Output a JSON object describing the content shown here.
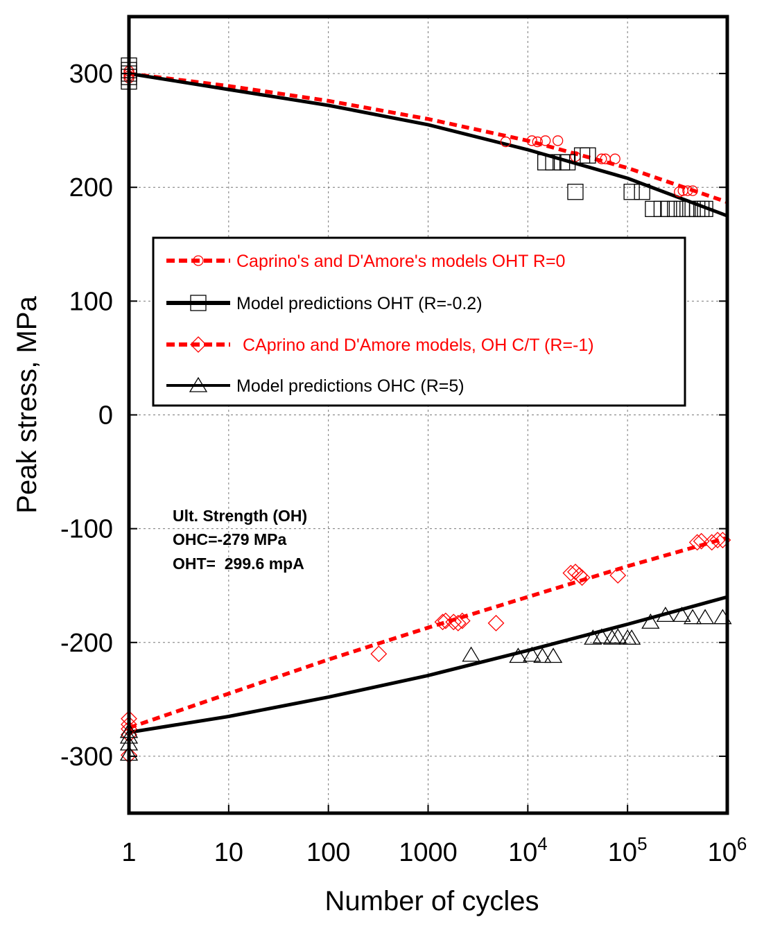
{
  "chart_data": {
    "type": "scatter",
    "title": "",
    "xlabel": "Number of cycles",
    "ylabel": "Peak stress, MPa",
    "xscale": "log",
    "xlim": [
      1,
      1000000
    ],
    "ylim": [
      -350,
      350
    ],
    "grid": true,
    "x_ticks": [
      {
        "value": 1,
        "label": "1"
      },
      {
        "value": 10,
        "label": "10"
      },
      {
        "value": 100,
        "label": "100"
      },
      {
        "value": 1000,
        "label": "1000"
      },
      {
        "value": 10000,
        "base": "10",
        "exp": "4"
      },
      {
        "value": 100000,
        "base": "10",
        "exp": "5"
      },
      {
        "value": 1000000,
        "base": "10",
        "exp": "6"
      }
    ],
    "y_ticks": [
      {
        "value": 300,
        "label": "300"
      },
      {
        "value": 200,
        "label": "200"
      },
      {
        "value": 100,
        "label": "100"
      },
      {
        "value": 0,
        "label": "0"
      },
      {
        "value": -100,
        "label": "-100"
      },
      {
        "value": -200,
        "label": "-200"
      },
      {
        "value": -300,
        "label": "-300"
      }
    ],
    "legend_position": "upper-middle",
    "series": [
      {
        "name": "Caprino's and D'Amore's models OHT R=0",
        "color": "#ff0000",
        "line": "dashed",
        "marker": "circle",
        "curve": [
          [
            1,
            300
          ],
          [
            10,
            289
          ],
          [
            100,
            276
          ],
          [
            1000,
            260
          ],
          [
            10000,
            241
          ],
          [
            100000,
            217
          ],
          [
            1000000,
            187
          ]
        ],
        "points": [
          [
            1,
            300
          ],
          [
            1,
            298
          ],
          [
            1,
            302
          ],
          [
            1,
            296
          ],
          [
            6000,
            240
          ],
          [
            11000,
            241
          ],
          [
            12500,
            240
          ],
          [
            15000,
            241
          ],
          [
            20000,
            241
          ],
          [
            30000,
            227
          ],
          [
            55000,
            225
          ],
          [
            60000,
            225
          ],
          [
            75000,
            225
          ],
          [
            330000,
            196
          ],
          [
            360000,
            197
          ],
          [
            400000,
            197
          ],
          [
            450000,
            197
          ]
        ]
      },
      {
        "name": "Model predictions OHT (R=-0.2)",
        "color": "#000000",
        "line": "solid",
        "marker": "square",
        "curve": [
          [
            1,
            300
          ],
          [
            10,
            286
          ],
          [
            100,
            272
          ],
          [
            1000,
            255
          ],
          [
            10000,
            233
          ],
          [
            100000,
            208
          ],
          [
            1000000,
            175
          ]
        ],
        "points": [
          [
            1,
            307
          ],
          [
            1,
            303
          ],
          [
            1,
            300
          ],
          [
            1,
            297
          ],
          [
            1,
            293
          ],
          [
            15000,
            222
          ],
          [
            18000,
            222
          ],
          [
            22000,
            222
          ],
          [
            25000,
            222
          ],
          [
            30000,
            196
          ],
          [
            35000,
            228
          ],
          [
            40000,
            228
          ],
          [
            110000,
            196
          ],
          [
            140000,
            196
          ],
          [
            180000,
            181
          ],
          [
            220000,
            181
          ],
          [
            260000,
            181
          ],
          [
            300000,
            181
          ],
          [
            350000,
            181
          ],
          [
            400000,
            181
          ],
          [
            450000,
            181
          ],
          [
            500000,
            181
          ],
          [
            550000,
            181
          ],
          [
            600000,
            181
          ]
        ]
      },
      {
        "name": "CAprino and D'Amore models, OH C/T (R=-1)",
        "color": "#ff0000",
        "line": "dashed",
        "marker": "diamond",
        "curve": [
          [
            1,
            -275
          ],
          [
            10,
            -245
          ],
          [
            100,
            -215
          ],
          [
            1000,
            -187
          ],
          [
            10000,
            -160
          ],
          [
            100000,
            -133
          ],
          [
            1000000,
            -108
          ]
        ],
        "points": [
          [
            1,
            -267
          ],
          [
            1,
            -272
          ],
          [
            1,
            -276
          ],
          [
            1,
            -281
          ],
          [
            1,
            -299
          ],
          [
            320,
            -210
          ],
          [
            1400,
            -182
          ],
          [
            1500,
            -181
          ],
          [
            1800,
            -182
          ],
          [
            2000,
            -183
          ],
          [
            2200,
            -181
          ],
          [
            4800,
            -183
          ],
          [
            27000,
            -139
          ],
          [
            30000,
            -138
          ],
          [
            33000,
            -141
          ],
          [
            35000,
            -143
          ],
          [
            80000,
            -141
          ],
          [
            500000,
            -112
          ],
          [
            550000,
            -111
          ],
          [
            700000,
            -112
          ],
          [
            800000,
            -110
          ],
          [
            900000,
            -110
          ]
        ]
      },
      {
        "name": "Model predictions OHC (R=5)",
        "color": "#000000",
        "line": "solid",
        "marker": "triangle",
        "curve": [
          [
            1,
            -279
          ],
          [
            10,
            -265
          ],
          [
            100,
            -248
          ],
          [
            1000,
            -229
          ],
          [
            10000,
            -207
          ],
          [
            100000,
            -184
          ],
          [
            1000000,
            -160
          ]
        ],
        "points": [
          [
            1,
            -278
          ],
          [
            1,
            -283
          ],
          [
            1,
            -289
          ],
          [
            1,
            -298
          ],
          [
            2700,
            -211
          ],
          [
            8000,
            -212
          ],
          [
            11000,
            -211
          ],
          [
            14000,
            -212
          ],
          [
            18000,
            -212
          ],
          [
            45000,
            -196
          ],
          [
            55000,
            -195
          ],
          [
            70000,
            -196
          ],
          [
            80000,
            -195
          ],
          [
            100000,
            -196
          ],
          [
            110000,
            -196
          ],
          [
            170000,
            -182
          ],
          [
            240000,
            -176
          ],
          [
            350000,
            -176
          ],
          [
            450000,
            -178
          ],
          [
            600000,
            -178
          ],
          [
            900000,
            -178
          ]
        ]
      }
    ],
    "annotations": [
      "Ult. Strength (OH)",
      "OHC=-279 MPa",
      "OHT=  299.6 mpA"
    ]
  }
}
